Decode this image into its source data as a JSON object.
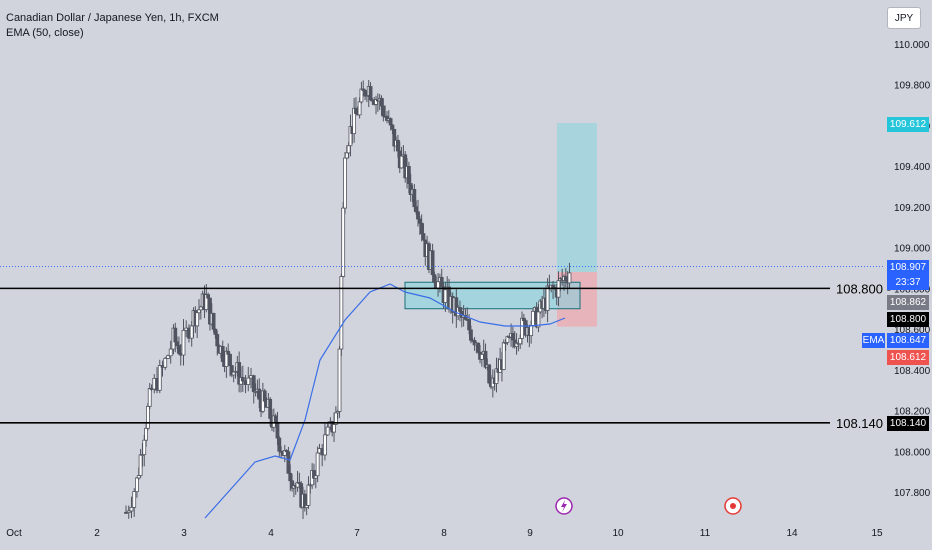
{
  "header": {
    "title": "Canadian Dollar / Japanese Yen, 1h, FXCM",
    "indicator": "EMA (50, close)",
    "currency": "JPY"
  },
  "chart_data": {
    "type": "candlestick",
    "y_ticks": [
      "110.000",
      "109.800",
      "109.600",
      "109.400",
      "109.200",
      "109.000",
      "108.800",
      "108.600",
      "108.400",
      "108.200",
      "108.000",
      "107.800"
    ],
    "x_ticks": [
      "Oct",
      "2",
      "3",
      "4",
      "7",
      "8",
      "9",
      "10",
      "11",
      "14",
      "15"
    ],
    "horizontal_lines": [
      {
        "label": "108.800",
        "value": 108.8
      },
      {
        "label": "108.140",
        "value": 108.14
      }
    ],
    "last_price_line": 108.907,
    "price_labels": {
      "last_price": "108.907",
      "countdown": "23:37",
      "price_108_862": "108.862",
      "line_108_800": "108.800",
      "ema_tag": "EMA",
      "ema_value": "108.647",
      "stop_value": "108.612",
      "target_value": "109.612",
      "line_108_140": "108.140"
    },
    "colors": {
      "background": "#d1d4dc",
      "candle": "#505460",
      "ema": "#3b6ee8",
      "last_price": "#2962ff",
      "target_zone": "#a8d4de",
      "stop_zone": "#e8b4bc",
      "zone_box": "#3ec7d8"
    },
    "candles_sketch": [
      [
        0.0,
        107.7
      ],
      [
        0.3,
        107.85
      ],
      [
        0.5,
        108.1
      ],
      [
        0.7,
        108.3
      ],
      [
        1.0,
        108.4
      ],
      [
        1.3,
        108.55
      ],
      [
        1.5,
        108.5
      ],
      [
        1.8,
        108.65
      ],
      [
        2.0,
        108.7
      ],
      [
        2.2,
        108.75
      ],
      [
        2.4,
        108.6
      ],
      [
        2.6,
        108.5
      ],
      [
        2.8,
        108.45
      ],
      [
        3.0,
        108.4
      ],
      [
        3.2,
        108.35
      ],
      [
        3.5,
        108.3
      ],
      [
        3.7,
        108.25
      ],
      [
        3.9,
        108.2
      ],
      [
        4.1,
        108.1
      ],
      [
        4.3,
        108.0
      ],
      [
        4.5,
        107.9
      ],
      [
        4.7,
        107.8
      ],
      [
        4.9,
        107.75
      ],
      [
        5.1,
        107.85
      ],
      [
        5.3,
        108.0
      ],
      [
        5.6,
        108.1
      ],
      [
        5.8,
        108.2
      ],
      [
        6.0,
        109.5
      ],
      [
        6.2,
        109.6
      ],
      [
        6.4,
        109.7
      ],
      [
        6.6,
        109.8
      ],
      [
        6.8,
        109.75
      ],
      [
        7.0,
        109.7
      ],
      [
        7.2,
        109.6
      ],
      [
        7.4,
        109.5
      ],
      [
        7.6,
        109.4
      ],
      [
        7.8,
        109.3
      ],
      [
        8.0,
        109.2
      ],
      [
        8.2,
        109.0
      ],
      [
        8.4,
        108.9
      ],
      [
        8.6,
        108.8
      ],
      [
        8.8,
        108.75
      ],
      [
        9.0,
        108.7
      ],
      [
        9.2,
        108.65
      ],
      [
        9.4,
        108.6
      ],
      [
        9.6,
        108.55
      ],
      [
        9.8,
        108.45
      ],
      [
        10.0,
        108.3
      ],
      [
        10.2,
        108.4
      ],
      [
        10.4,
        108.5
      ],
      [
        10.6,
        108.55
      ],
      [
        10.8,
        108.6
      ],
      [
        11.0,
        108.62
      ],
      [
        11.2,
        108.65
      ],
      [
        11.4,
        108.7
      ],
      [
        11.6,
        108.78
      ],
      [
        11.8,
        108.8
      ],
      [
        12.0,
        108.85
      ],
      [
        12.2,
        108.9
      ]
    ]
  }
}
